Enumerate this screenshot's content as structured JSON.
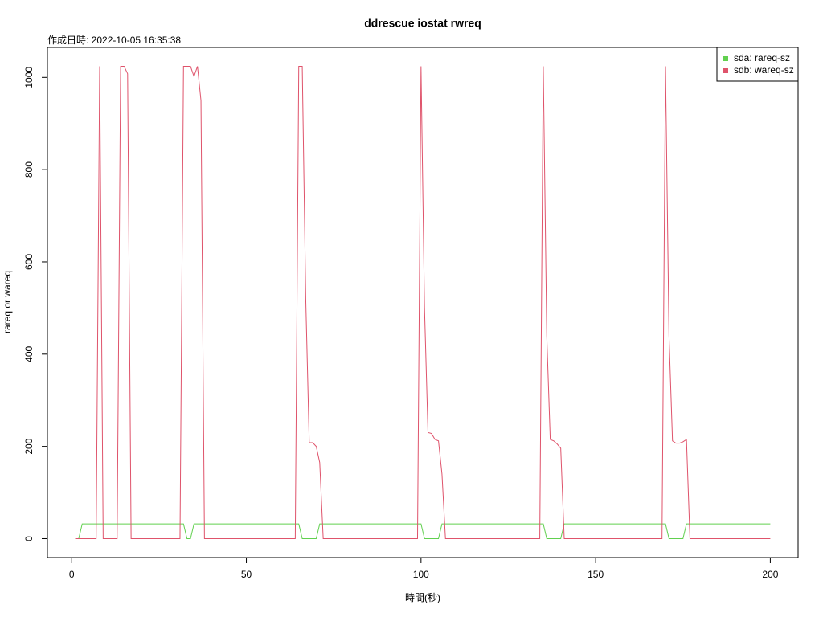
{
  "chart_data": {
    "type": "line",
    "title": "ddrescue iostat rwreq",
    "subtitle": "作成日時: 2022-10-05 16:35:38",
    "x_label": "時間(秒)",
    "y_label": "rareq or wareq",
    "xlim": [
      -6.96,
      207.96
    ],
    "ylim": [
      -40.96,
      1064.96
    ],
    "xticks": [
      0,
      50,
      100,
      150,
      200
    ],
    "yticks": [
      0,
      200,
      400,
      600,
      800,
      1000
    ],
    "legend": "top-right",
    "series": [
      {
        "name": "sda: rareq-sz",
        "color": "#61D04F",
        "x": [
          1,
          2,
          3,
          32,
          33,
          34,
          35,
          65,
          66,
          70,
          71,
          100,
          101,
          105,
          106,
          135,
          136,
          140,
          141,
          170,
          171,
          175,
          176,
          200
        ],
        "values": [
          0,
          0,
          32,
          32,
          0,
          0,
          32,
          32,
          0,
          0,
          32,
          32,
          0,
          0,
          32,
          32,
          0,
          0,
          32,
          32,
          0,
          0,
          32,
          32
        ]
      },
      {
        "name": "sdb: wareq-sz",
        "color": "#DF536B",
        "x": [
          1,
          7,
          8,
          9,
          13,
          14,
          15,
          16,
          17,
          31,
          32,
          34,
          35,
          36,
          37,
          38,
          64,
          65,
          66,
          67,
          68,
          69,
          70,
          71,
          72,
          99,
          100,
          101,
          102,
          103,
          104,
          105,
          106,
          107,
          134,
          135,
          136,
          137,
          138,
          139,
          140,
          141,
          169,
          170,
          171,
          172,
          173,
          174,
          175,
          176,
          177,
          200
        ],
        "values": [
          0,
          0,
          1024,
          0,
          0,
          1024,
          1024,
          1008,
          0,
          0,
          1024,
          1024,
          1002,
          1024,
          950,
          0,
          0,
          1024,
          1024,
          520,
          208,
          208,
          200,
          165,
          0,
          0,
          1024,
          500,
          230,
          228,
          215,
          212,
          140,
          0,
          0,
          1024,
          440,
          215,
          212,
          205,
          196,
          0,
          0,
          1024,
          440,
          212,
          207,
          207,
          210,
          215,
          0,
          0
        ]
      }
    ]
  }
}
